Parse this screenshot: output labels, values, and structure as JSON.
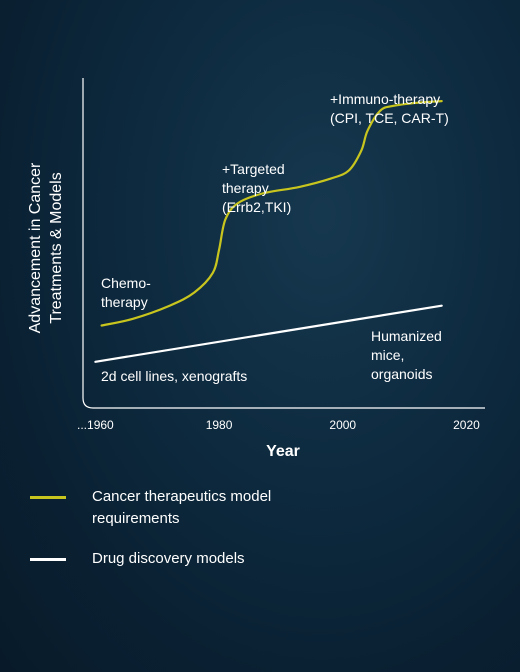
{
  "colors": {
    "accent": "#c8c51e",
    "line": "#ffffff",
    "axis": "#ffffff"
  },
  "chart_data": {
    "type": "line",
    "ylabel": "Advancement in Cancer Treatments & Models",
    "xlabel": "Year",
    "x_ticks": [
      "...1960",
      "1980",
      "2000",
      "2020"
    ],
    "x_tick_values": [
      1960,
      1980,
      2000,
      2020
    ],
    "xlim": [
      1958,
      2023
    ],
    "ylim": [
      0,
      100
    ],
    "series": [
      {
        "name": "Cancer therapeutics model requirements",
        "color": "#c8c51e",
        "points": [
          [
            1961,
            25
          ],
          [
            1966,
            27
          ],
          [
            1972,
            31
          ],
          [
            1976,
            35
          ],
          [
            1979,
            41
          ],
          [
            1980,
            48
          ],
          [
            1981,
            57
          ],
          [
            1983,
            62
          ],
          [
            1987,
            65
          ],
          [
            1993,
            67
          ],
          [
            1998,
            69.5
          ],
          [
            2001,
            72
          ],
          [
            2003,
            78
          ],
          [
            2004,
            84
          ],
          [
            2006,
            90
          ],
          [
            2008,
            91.5
          ],
          [
            2012,
            92.5
          ],
          [
            2016,
            93
          ]
        ]
      },
      {
        "name": "Drug discovery models",
        "color": "#ffffff",
        "points": [
          [
            1960,
            14
          ],
          [
            2016,
            31
          ]
        ]
      }
    ],
    "annotations": [
      {
        "lines": [
          "Chemo-",
          "therapy"
        ]
      },
      {
        "lines": [
          "+Targeted",
          "therapy",
          "(Errb2,TKI)"
        ]
      },
      {
        "lines": [
          "+Immuno-therapy",
          "(CPI, TCE, CAR-T)"
        ]
      },
      {
        "lines": [
          "2d cell lines, xenografts"
        ]
      },
      {
        "lines": [
          "Humanized",
          "mice,",
          "organoids"
        ]
      }
    ]
  },
  "legend": [
    {
      "label": "Cancer therapeutics model requirements",
      "color": "#c8c51e"
    },
    {
      "label": "Drug discovery models",
      "color": "#ffffff"
    }
  ]
}
